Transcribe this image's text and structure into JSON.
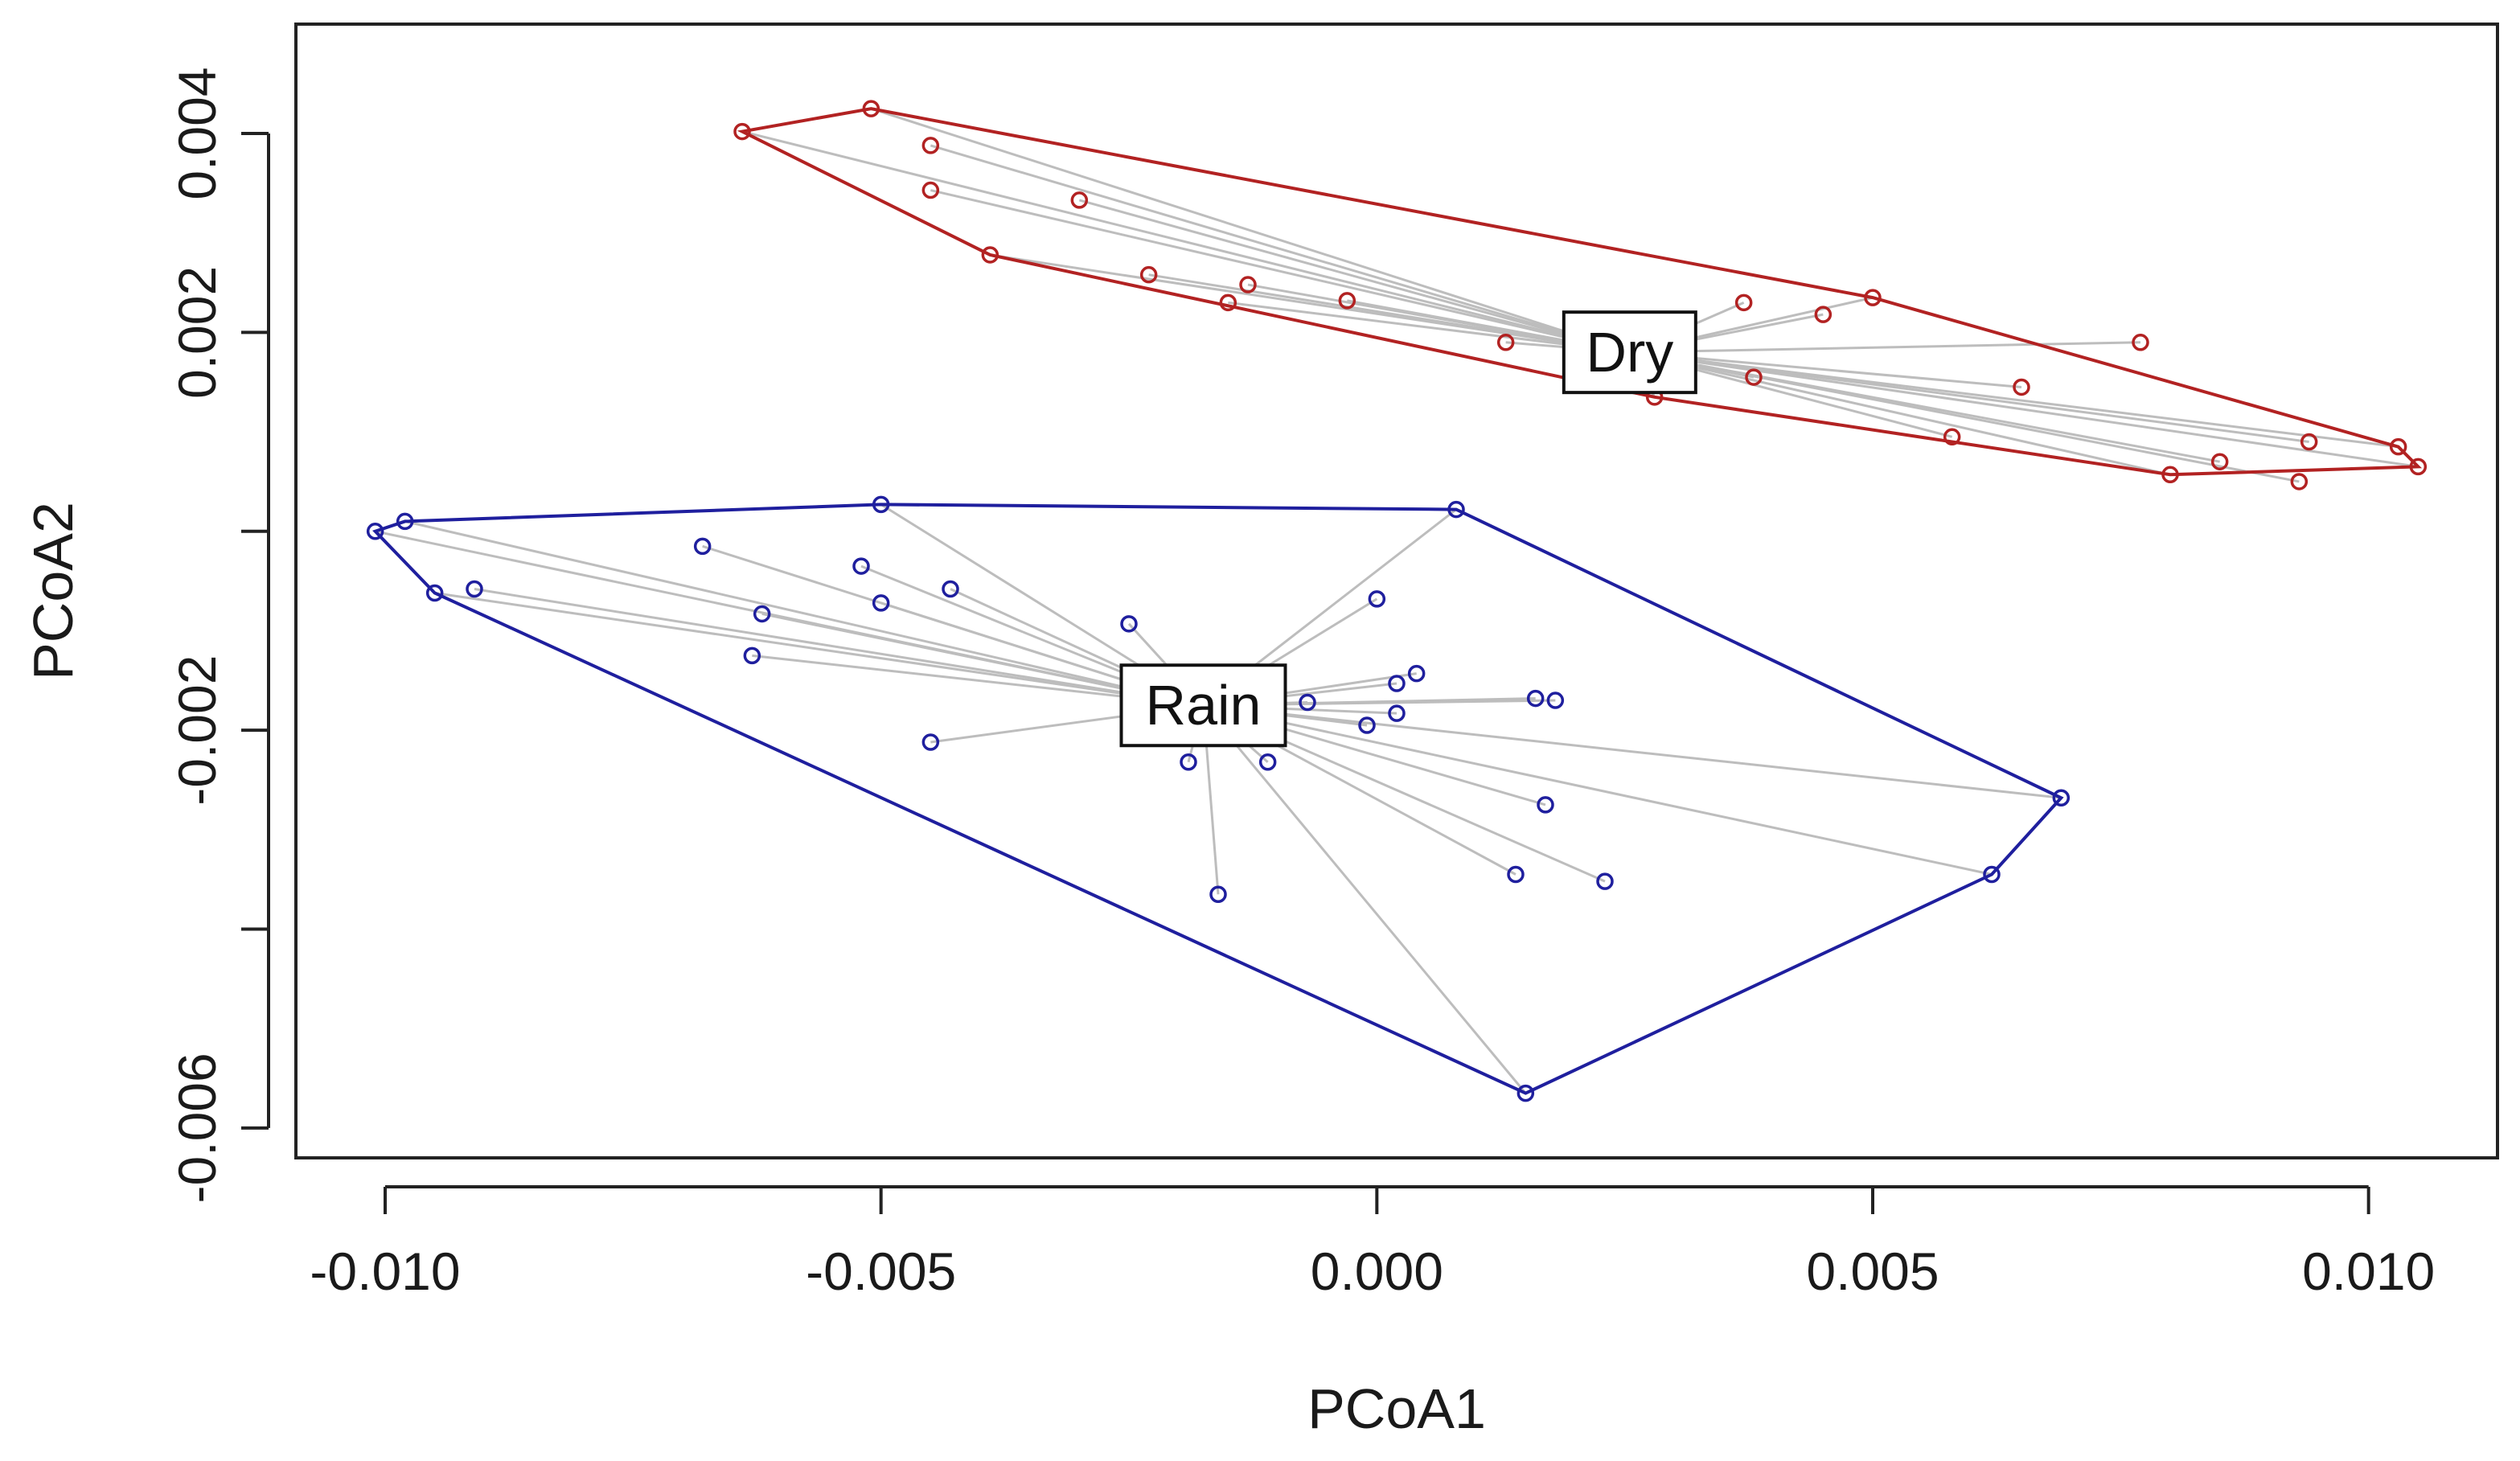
{
  "chart_data": {
    "type": "scatter",
    "xlabel": "PCoA1",
    "ylabel": "PCoA2",
    "xlim": [
      -0.0109,
      0.0113
    ],
    "ylim": [
      -0.0063,
      0.0051
    ],
    "xticks": [
      -0.01,
      -0.005,
      0.0,
      0.005,
      0.01
    ],
    "xtick_labels": [
      "-0.010",
      "-0.005",
      "0.000",
      "0.005",
      "0.010"
    ],
    "yticks": [
      -0.006,
      -0.004,
      -0.002,
      0.0,
      0.002,
      0.004
    ],
    "ytick_labels": [
      "-0.006",
      "",
      "-0.002",
      "",
      "0.002",
      "0.004"
    ],
    "grid": false,
    "colors": {
      "Dry": "#b22222",
      "Rain": "#1f1f9e",
      "spider": "#bdbdbd"
    },
    "groups": [
      {
        "name": "Dry",
        "centroid": [
          0.00255,
          0.0018
        ],
        "hull": [
          [
            -0.0064,
            0.00402
          ],
          [
            -0.0051,
            0.00425
          ],
          [
            0.005,
            0.00235
          ],
          [
            0.0103,
            0.00085
          ],
          [
            0.0105,
            0.00065
          ],
          [
            0.008,
            0.00057
          ],
          [
            0.0028,
            0.00135
          ],
          [
            -0.0039,
            0.00278
          ]
        ],
        "points": [
          [
            -0.0064,
            0.00402
          ],
          [
            -0.0051,
            0.00425
          ],
          [
            -0.0045,
            0.00388
          ],
          [
            -0.0045,
            0.00343
          ],
          [
            -0.003,
            0.00333
          ],
          [
            -0.0039,
            0.00278
          ],
          [
            -0.0023,
            0.00258
          ],
          [
            -0.0013,
            0.00248
          ],
          [
            -0.0015,
            0.0023
          ],
          [
            -0.0003,
            0.00232
          ],
          [
            0.0013,
            0.0019
          ],
          [
            0.0023,
            0.002
          ],
          [
            0.0028,
            0.00135
          ],
          [
            0.0037,
            0.0023
          ],
          [
            0.0038,
            0.00155
          ],
          [
            0.0045,
            0.00218
          ],
          [
            0.005,
            0.00235
          ],
          [
            0.0058,
            0.00095
          ],
          [
            0.0065,
            0.00145
          ],
          [
            0.0077,
            0.0019
          ],
          [
            0.0085,
            0.0007
          ],
          [
            0.0093,
            0.0005
          ],
          [
            0.0094,
            0.0009
          ],
          [
            0.0103,
            0.00085
          ],
          [
            0.0105,
            0.00065
          ],
          [
            0.008,
            0.00057
          ]
        ],
        "label": "Dry"
      },
      {
        "name": "Rain",
        "centroid": [
          -0.00175,
          -0.00175
        ],
        "hull": [
          [
            -0.0101,
            0.0
          ],
          [
            -0.0098,
            0.0001
          ],
          [
            -0.005,
            0.00027
          ],
          [
            0.0008,
            0.00022
          ],
          [
            0.0069,
            -0.00268
          ],
          [
            0.0062,
            -0.00345
          ],
          [
            0.0015,
            -0.00565
          ],
          [
            -0.0095,
            -0.00062
          ]
        ],
        "points": [
          [
            -0.0101,
            0.0
          ],
          [
            -0.0098,
            0.0001
          ],
          [
            -0.0095,
            -0.00062
          ],
          [
            -0.0091,
            -0.00058
          ],
          [
            -0.0068,
            -0.00015
          ],
          [
            -0.0062,
            -0.00083
          ],
          [
            -0.0063,
            -0.00125
          ],
          [
            -0.005,
            0.00027
          ],
          [
            -0.0052,
            -0.00035
          ],
          [
            -0.005,
            -0.00072
          ],
          [
            -0.0043,
            -0.00058
          ],
          [
            -0.0045,
            -0.00212
          ],
          [
            -0.0025,
            -0.00093
          ],
          [
            -0.0025,
            -0.00188
          ],
          [
            -0.0019,
            -0.00232
          ],
          [
            -0.0016,
            -0.00365
          ],
          [
            -0.0007,
            -0.00172
          ],
          [
            -0.0011,
            -0.00232
          ],
          [
            0.0,
            -0.00068
          ],
          [
            0.0008,
            0.00022
          ],
          [
            -0.0001,
            -0.00195
          ],
          [
            0.0002,
            -0.00183
          ],
          [
            0.0002,
            -0.00153
          ],
          [
            0.0004,
            -0.00143
          ],
          [
            0.0016,
            -0.00168
          ],
          [
            0.0018,
            -0.0017
          ],
          [
            0.0017,
            -0.00275
          ],
          [
            0.0014,
            -0.00345
          ],
          [
            0.0023,
            -0.00352
          ],
          [
            0.0069,
            -0.00268
          ],
          [
            0.0062,
            -0.00345
          ],
          [
            0.0015,
            -0.00565
          ]
        ],
        "label": "Rain"
      }
    ]
  }
}
